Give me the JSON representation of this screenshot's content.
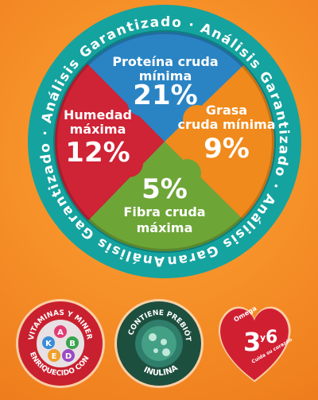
{
  "ring": {
    "text": "Análisis Garantizado · Análisis Garantizado · Análisis Garantizado · Análisis Garantizado ·"
  },
  "quadrants": {
    "protein": {
      "line1": "Proteína cruda",
      "line2": "mínima",
      "value": "21%",
      "color": "#2a84c4"
    },
    "fat": {
      "line1": "Grasa",
      "line2": "cruda mínima",
      "value": "9%",
      "color": "#f08a1c"
    },
    "fiber": {
      "line1": "Fibra cruda",
      "line2": "máxima",
      "value": "5%",
      "color": "#6ea537"
    },
    "moisture": {
      "line1": "Humedad",
      "line2": "máxima",
      "value": "12%",
      "color": "#cf2336"
    }
  },
  "badges": {
    "vitamins": {
      "arc_top": "VITAMINAS Y MINERALES",
      "arc_bottom": "ENRIQUECIDO CON",
      "letters": [
        "A",
        "K",
        "B",
        "E",
        "D"
      ]
    },
    "prebiotic": {
      "arc_top": "CONTIENE PREBIÓTICO",
      "arc_bottom": "INULINA"
    },
    "omega": {
      "word": "Omega",
      "num3": "3",
      "y": "y",
      "num6": "6",
      "tagline": "Cuida su corazón"
    }
  },
  "colors": {
    "ring": "#16a6a2",
    "ring_dark": "#0d8784",
    "background": "#f7922a"
  }
}
